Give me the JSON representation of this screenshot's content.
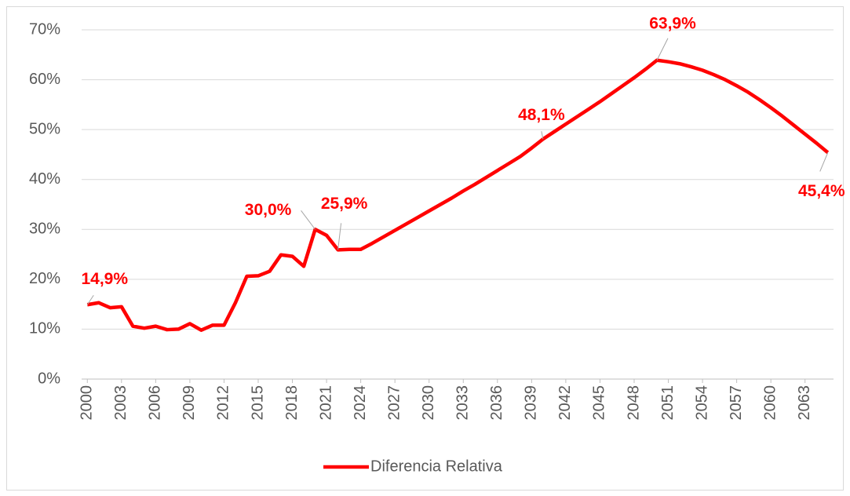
{
  "chart_data": {
    "type": "line",
    "x": [
      2000,
      2001,
      2002,
      2003,
      2004,
      2005,
      2006,
      2007,
      2008,
      2009,
      2010,
      2011,
      2012,
      2013,
      2014,
      2015,
      2016,
      2017,
      2018,
      2019,
      2020,
      2021,
      2022,
      2023,
      2024,
      2025,
      2026,
      2027,
      2028,
      2029,
      2030,
      2031,
      2032,
      2033,
      2034,
      2035,
      2036,
      2037,
      2038,
      2039,
      2040,
      2041,
      2042,
      2043,
      2044,
      2045,
      2046,
      2047,
      2048,
      2049,
      2050,
      2051,
      2052,
      2053,
      2054,
      2055,
      2056,
      2057,
      2058,
      2059,
      2060,
      2061,
      2062,
      2063,
      2064,
      2065
    ],
    "xlim": [
      1999.5,
      2065.5
    ],
    "xticks": [
      2000,
      2003,
      2006,
      2009,
      2012,
      2015,
      2018,
      2021,
      2024,
      2027,
      2030,
      2033,
      2036,
      2039,
      2042,
      2045,
      2048,
      2051,
      2054,
      2057,
      2060,
      2063
    ],
    "ylim": [
      0,
      70
    ],
    "yticks": [
      {
        "value": 0,
        "label": "0%"
      },
      {
        "value": 10,
        "label": "10%"
      },
      {
        "value": 20,
        "label": "20%"
      },
      {
        "value": 30,
        "label": "30%"
      },
      {
        "value": 40,
        "label": "40%"
      },
      {
        "value": 50,
        "label": "50%"
      },
      {
        "value": 60,
        "label": "60%"
      },
      {
        "value": 70,
        "label": "70%"
      }
    ],
    "grid": true,
    "legend": "bottom",
    "series": [
      {
        "name": "Diferencia Relativa",
        "color": "#ff0000",
        "values": [
          14.9,
          15.3,
          14.3,
          14.5,
          10.6,
          10.2,
          10.6,
          9.9,
          10.0,
          11.1,
          9.8,
          10.8,
          10.8,
          15.3,
          20.6,
          20.7,
          21.6,
          24.9,
          24.6,
          22.6,
          30.0,
          28.8,
          25.9,
          26.0,
          26.0,
          27.2,
          28.5,
          29.8,
          31.1,
          32.4,
          33.7,
          35.0,
          36.3,
          37.7,
          39.0,
          40.4,
          41.8,
          43.2,
          44.6,
          46.3,
          48.1,
          49.6,
          51.1,
          52.6,
          54.1,
          55.6,
          57.2,
          58.8,
          60.4,
          62.1,
          63.9,
          63.6,
          63.2,
          62.6,
          61.9,
          61.0,
          60.0,
          58.8,
          57.5,
          56.0,
          54.4,
          52.7,
          50.9,
          49.1,
          47.3,
          45.4
        ],
        "value_labels": [
          "14,9%",
          null,
          null,
          null,
          null,
          null,
          null,
          null,
          null,
          null,
          null,
          null,
          null,
          null,
          null,
          null,
          null,
          null,
          null,
          null,
          "30,0%",
          null,
          "25,9%",
          null,
          null,
          null,
          null,
          null,
          null,
          null,
          null,
          null,
          null,
          null,
          null,
          null,
          null,
          null,
          null,
          null,
          "48,1%",
          null,
          null,
          null,
          null,
          null,
          null,
          null,
          null,
          null,
          "63,9%",
          null,
          null,
          null,
          null,
          null,
          null,
          null,
          null,
          null,
          null,
          null,
          null,
          null,
          null,
          "45,4%"
        ]
      }
    ]
  }
}
